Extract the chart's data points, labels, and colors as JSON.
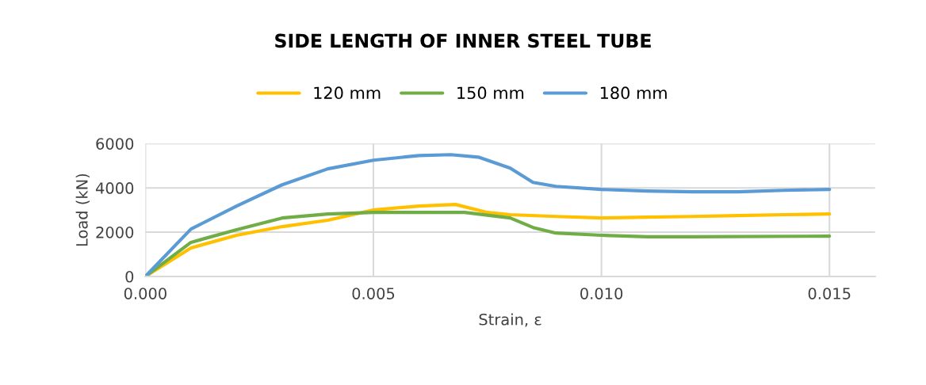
{
  "chart_data": {
    "type": "line",
    "title": "SIDE LENGTH OF INNER STEEL TUBE",
    "xlabel": "Strain, ε",
    "ylabel": "Load (kN)",
    "xlim": [
      0,
      0.016
    ],
    "xticks": [
      {
        "value": 0,
        "label": "0.000"
      },
      {
        "value": 0.005,
        "label": "0.005"
      },
      {
        "value": 0.01,
        "label": "0.010"
      },
      {
        "value": 0.015,
        "label": "0.015"
      }
    ],
    "ylim": [
      0,
      6000
    ],
    "yticks": [
      0,
      2000,
      4000,
      6000
    ],
    "grid": true,
    "legend": "top",
    "marker": "none",
    "line_style": "solid",
    "series": [
      {
        "name": "120 mm",
        "color": "#ffc000",
        "x": [
          0,
          0.001,
          0.002,
          0.003,
          0.004,
          0.005,
          0.006,
          0.0068,
          0.0075,
          0.008,
          0.009,
          0.01,
          0.011,
          0.012,
          0.013,
          0.014,
          0.015
        ],
        "values": [
          0,
          1290,
          1860,
          2250,
          2540,
          3000,
          3180,
          3250,
          2890,
          2790,
          2710,
          2640,
          2680,
          2710,
          2750,
          2790,
          2820
        ]
      },
      {
        "name": "150 mm",
        "color": "#70ad47",
        "x": [
          0,
          0.001,
          0.002,
          0.003,
          0.004,
          0.005,
          0.006,
          0.007,
          0.008,
          0.0085,
          0.009,
          0.01,
          0.011,
          0.012,
          0.015
        ],
        "values": [
          0,
          1540,
          2110,
          2640,
          2820,
          2890,
          2890,
          2890,
          2640,
          2210,
          1960,
          1860,
          1790,
          1790,
          1820
        ]
      },
      {
        "name": "180 mm",
        "color": "#5b9bd5",
        "x": [
          0,
          0.001,
          0.002,
          0.003,
          0.004,
          0.005,
          0.006,
          0.0067,
          0.0073,
          0.008,
          0.0085,
          0.009,
          0.01,
          0.011,
          0.012,
          0.013,
          0.014,
          0.015
        ],
        "values": [
          0,
          2140,
          3180,
          4140,
          4860,
          5250,
          5460,
          5500,
          5390,
          4890,
          4250,
          4070,
          3930,
          3860,
          3820,
          3820,
          3890,
          3930
        ]
      }
    ]
  }
}
